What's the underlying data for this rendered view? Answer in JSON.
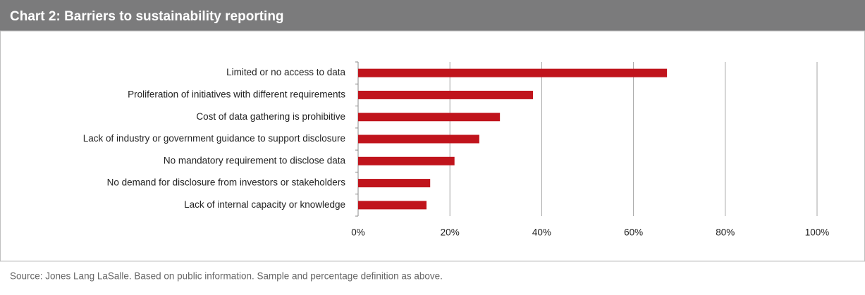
{
  "chart_data": {
    "type": "bar",
    "orientation": "horizontal",
    "title": "Chart  2: Barriers to sustainability reporting",
    "categories": [
      "Limited or no access to data",
      "Proliferation of initiatives with different requirements",
      "Cost of data gathering is prohibitive",
      "Lack of industry or government guidance to support disclosure",
      "No mandatory requirement to disclose data",
      "No demand for disclosure from investors or stakeholders",
      "Lack of internal capacity or knowledge"
    ],
    "values": [
      67.3,
      38.1,
      30.9,
      26.4,
      21,
      15.7,
      14.9
    ],
    "color": "#c0141c",
    "xlim": [
      0,
      100
    ],
    "xticks": [
      {
        "value": 0,
        "label": "0%"
      },
      {
        "value": 20,
        "label": "20%"
      },
      {
        "value": 40,
        "label": "40%"
      },
      {
        "value": 60,
        "label": "60%"
      },
      {
        "value": 80,
        "label": "80%"
      },
      {
        "value": 100,
        "label": "100%"
      }
    ],
    "grid": true,
    "source": "Source: Jones Lang LaSalle. Based on public information. Sample and percentage definition as above."
  }
}
